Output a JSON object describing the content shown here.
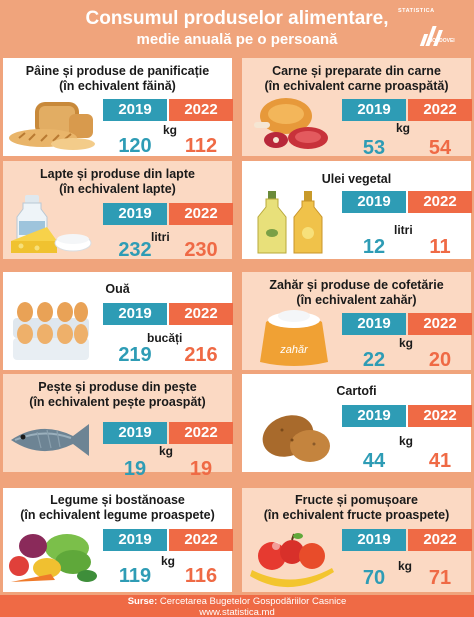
{
  "header": {
    "title_line1": "Consumul produselor alimentare,",
    "title_line2": "medie anuală pe o persoană",
    "logo_top": "STATISTICA",
    "logo_bottom": "MOLDOVEI"
  },
  "years": {
    "first": "2019",
    "second": "2022"
  },
  "cards": [
    {
      "title1": "Pâine și produse de panificație",
      "title2": "(în echivalent făină)",
      "unit": "kg",
      "v2019": "120",
      "v2022": "112",
      "icon": "bread-icon"
    },
    {
      "title1": "Carne și preparate din carne",
      "title2": "(în echivalent carne proaspătă)",
      "unit": "kg",
      "v2019": "53",
      "v2022": "54",
      "icon": "meat-icon"
    },
    {
      "title1": "Lapte și produse din lapte",
      "title2": "(în echivalent lapte)",
      "unit": "litri",
      "v2019": "232",
      "v2022": "230",
      "icon": "dairy-icon"
    },
    {
      "title1": "Ulei vegetal",
      "title2": "",
      "unit": "litri",
      "v2019": "12",
      "v2022": "11",
      "icon": "oil-bottle-icon"
    },
    {
      "title1": "Ouă",
      "title2": "",
      "unit": "bucăți",
      "v2019": "219",
      "v2022": "216",
      "icon": "eggs-icon"
    },
    {
      "title1": "Zahăr și produse de cofetărie",
      "title2": "(în echivalent zahăr)",
      "unit": "kg",
      "v2019": "22",
      "v2022": "20",
      "icon": "sugar-sack-icon",
      "sack_label": "zahăr"
    },
    {
      "title1": "Pește și produse din pește",
      "title2": "(în echivalent pește proaspăt)",
      "unit": "kg",
      "v2019": "19",
      "v2022": "19",
      "icon": "fish-icon"
    },
    {
      "title1": "Cartofi",
      "title2": "",
      "unit": "kg",
      "v2019": "44",
      "v2022": "41",
      "icon": "potato-icon"
    },
    {
      "title1": "Legume și bostănoase",
      "title2": "(în echivalent legume proaspete)",
      "unit": "kg",
      "v2019": "119",
      "v2022": "116",
      "icon": "vegetables-icon"
    },
    {
      "title1": "Fructe și pomușoare",
      "title2": "(în echivalent fructe proaspete)",
      "unit": "kg",
      "v2019": "70",
      "v2022": "71",
      "icon": "fruits-icon"
    }
  ],
  "footer": {
    "source_label": "Surse:",
    "source_text": "Cercetarea Bugetelor Gospodăriilor Casnice",
    "url": "www.statistica.md"
  },
  "colors": {
    "background": "#f0a47c",
    "year_2019": "#2e9cb5",
    "year_2022": "#ef6a45",
    "card_light": "#ffffff",
    "card_peach": "#fbd9c3"
  }
}
